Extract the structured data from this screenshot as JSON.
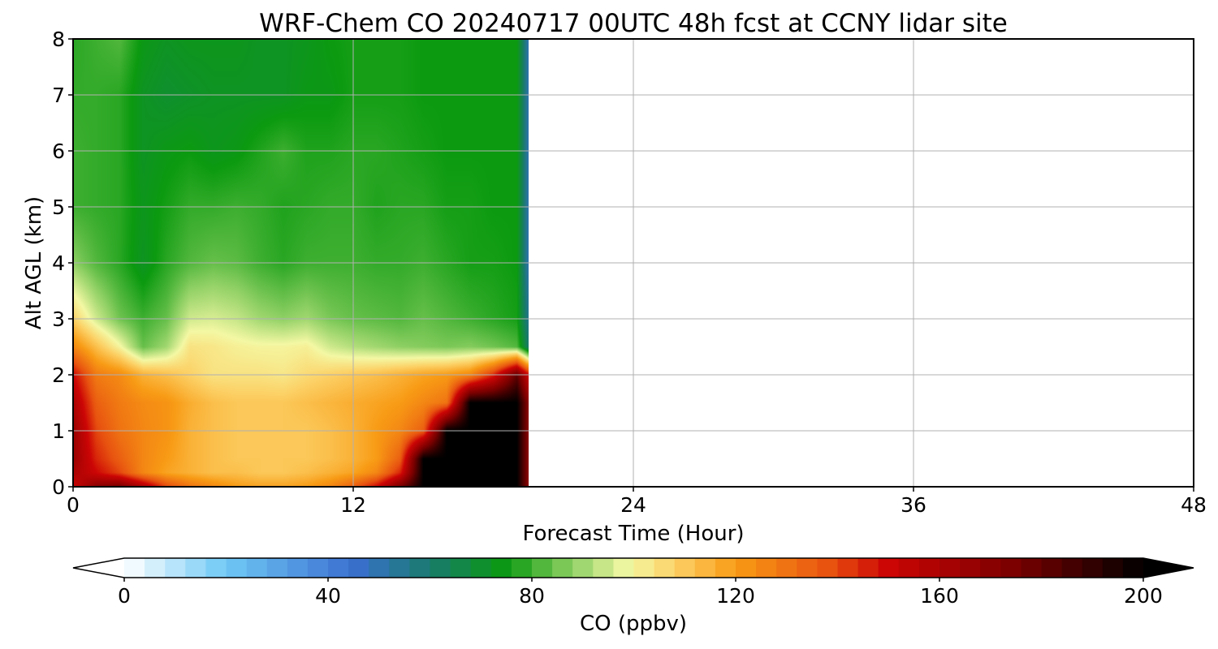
{
  "chart_data": {
    "type": "heatmap",
    "title": "WRF-Chem CO  20240717 00UTC 48h fcst at CCNY lidar site",
    "xlabel": "Forecast Time (Hour)",
    "ylabel": "Alt AGL (km)",
    "xlim": [
      0,
      48
    ],
    "ylim": [
      0,
      8
    ],
    "xticks": [
      0,
      12,
      24,
      36,
      48
    ],
    "yticks": [
      0,
      1,
      2,
      3,
      4,
      5,
      6,
      7,
      8
    ],
    "grid": true,
    "data_end_hour": 19.5,
    "x": [
      0,
      1,
      2,
      3,
      4,
      5,
      6,
      7,
      8,
      9,
      10,
      11,
      12,
      13,
      14,
      15,
      16,
      17,
      18,
      19,
      19.5
    ],
    "y": [
      0,
      0.25,
      0.5,
      1,
      1.5,
      2,
      2.5,
      3,
      4,
      5,
      6,
      7,
      8
    ],
    "z": [
      [
        150,
        170,
        175,
        160,
        140,
        130,
        125,
        120,
        118,
        118,
        120,
        125,
        135,
        150,
        175,
        200,
        200,
        200,
        200,
        200,
        170
      ],
      [
        160,
        150,
        140,
        125,
        118,
        115,
        112,
        112,
        110,
        110,
        112,
        115,
        118,
        125,
        145,
        200,
        200,
        200,
        200,
        200,
        170
      ],
      [
        165,
        145,
        135,
        125,
        120,
        115,
        112,
        110,
        110,
        110,
        110,
        112,
        115,
        120,
        135,
        200,
        200,
        200,
        200,
        200,
        170
      ],
      [
        165,
        140,
        130,
        125,
        122,
        115,
        112,
        110,
        110,
        110,
        110,
        112,
        115,
        120,
        125,
        135,
        200,
        200,
        200,
        200,
        170
      ],
      [
        160,
        135,
        128,
        124,
        122,
        116,
        112,
        110,
        110,
        110,
        112,
        114,
        116,
        118,
        120,
        125,
        130,
        200,
        200,
        200,
        170
      ],
      [
        150,
        128,
        124,
        115,
        112,
        108,
        104,
        104,
        104,
        103,
        106,
        108,
        110,
        112,
        115,
        118,
        120,
        125,
        145,
        180,
        150
      ],
      [
        125,
        112,
        100,
        84,
        90,
        104,
        103,
        101,
        100,
        100,
        101,
        95,
        92,
        90,
        88,
        87,
        86,
        87,
        85,
        82,
        60
      ],
      [
        108,
        95,
        85,
        80,
        84,
        95,
        96,
        94,
        90,
        88,
        90,
        86,
        84,
        83,
        82,
        84,
        82,
        80,
        78,
        76,
        55
      ],
      [
        88,
        82,
        78,
        72,
        78,
        82,
        84,
        83,
        80,
        78,
        80,
        80,
        80,
        79,
        79,
        80,
        78,
        76,
        76,
        75,
        50
      ],
      [
        80,
        79,
        78,
        73,
        76,
        79,
        79,
        80,
        79,
        77,
        78,
        79,
        79,
        77,
        78,
        78,
        76,
        76,
        75,
        75,
        50
      ],
      [
        80,
        79,
        78,
        72,
        74,
        75,
        73,
        74,
        77,
        80,
        77,
        77,
        78,
        78,
        77,
        76,
        75,
        75,
        75,
        75,
        50
      ],
      [
        79,
        79,
        78,
        72,
        70,
        71,
        72,
        72,
        72,
        72,
        74,
        74,
        76,
        76,
        76,
        75,
        75,
        75,
        75,
        75,
        50
      ],
      [
        78,
        80,
        82,
        74,
        72,
        73,
        73,
        73,
        72,
        72,
        73,
        75,
        76,
        76,
        76,
        75,
        75,
        75,
        75,
        75,
        50
      ]
    ],
    "colorbar": {
      "label": "CO  (ppbv)",
      "min": 0,
      "max": 200,
      "ticks": [
        0,
        40,
        80,
        120,
        160,
        200
      ],
      "extend": "both"
    },
    "colormap_stops": [
      {
        "v": 0,
        "color": "#ffffff"
      },
      {
        "v": 20,
        "color": "#6fc8f5"
      },
      {
        "v": 45,
        "color": "#3a6fd0"
      },
      {
        "v": 60,
        "color": "#197a6d"
      },
      {
        "v": 75,
        "color": "#0b9a10"
      },
      {
        "v": 88,
        "color": "#8fd064"
      },
      {
        "v": 99,
        "color": "#f4f8a4"
      },
      {
        "v": 108,
        "color": "#fcd166"
      },
      {
        "v": 120,
        "color": "#f89b15"
      },
      {
        "v": 138,
        "color": "#e85310"
      },
      {
        "v": 150,
        "color": "#cc0505"
      },
      {
        "v": 175,
        "color": "#7a0000"
      },
      {
        "v": 200,
        "color": "#000000"
      }
    ]
  }
}
